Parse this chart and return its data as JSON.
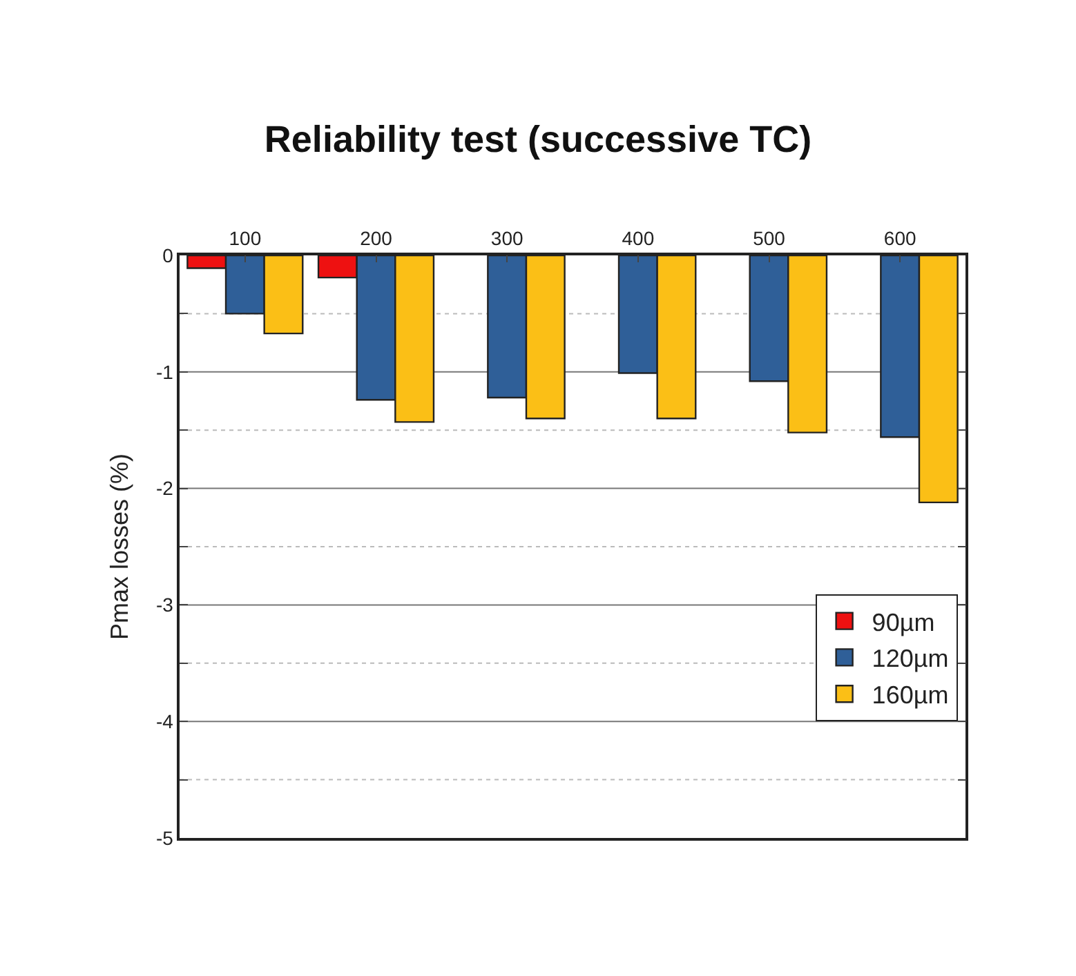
{
  "chart_data": {
    "type": "bar",
    "title": "Reliability test (successive TC)",
    "ylabel": "Pmax losses (%)",
    "categories": [
      "100",
      "200",
      "300",
      "400",
      "500",
      "600"
    ],
    "series": [
      {
        "name": "90µm",
        "color": "#ee1111",
        "values": [
          -0.11,
          -0.19,
          null,
          null,
          null,
          null
        ]
      },
      {
        "name": "120µm",
        "color": "#2f5f98",
        "values": [
          -0.5,
          -1.24,
          -1.22,
          -1.01,
          -1.08,
          -1.56
        ]
      },
      {
        "name": "160µm",
        "color": "#fbbf16",
        "values": [
          -0.67,
          -1.43,
          -1.4,
          -1.4,
          -1.52,
          -2.12
        ]
      }
    ],
    "ylim": [
      -5,
      0
    ],
    "yticks": [
      -5,
      {
        "value": -4.5,
        "label": null
      },
      -4,
      {
        "value": -3.5,
        "label": null
      },
      -3,
      {
        "value": -2.5,
        "label": null
      },
      -2,
      {
        "value": -1.5,
        "label": null
      },
      -1,
      {
        "value": -0.5,
        "label": null
      },
      0
    ],
    "grid": "y",
    "legend": "bottom right"
  }
}
